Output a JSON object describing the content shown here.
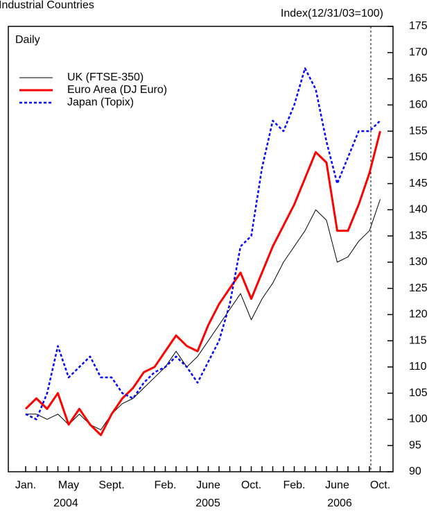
{
  "chart_data": {
    "type": "line",
    "title": "Industrial Countries",
    "y_axis_label": "Index(12/31/03=100)",
    "note": "Daily",
    "categories": [
      "Jan.",
      null,
      null,
      null,
      "May",
      null,
      null,
      null,
      "Sept.",
      null,
      null,
      null,
      null,
      "Feb.",
      null,
      null,
      null,
      "June",
      null,
      null,
      null,
      "Oct.",
      null,
      null,
      null,
      "Feb.",
      null,
      null,
      null,
      "June",
      null,
      null,
      null,
      "Oct."
    ],
    "years": [
      "2004",
      "2005",
      "2006"
    ],
    "ylim": [
      90,
      175
    ],
    "yticks": [
      90,
      95,
      100,
      105,
      110,
      115,
      120,
      125,
      130,
      135,
      140,
      145,
      150,
      155,
      160,
      165,
      170,
      175
    ],
    "series": [
      {
        "name": "UK (FTSE-350)",
        "color": "#000000",
        "dash": "none",
        "width": 1,
        "values": [
          101,
          101,
          100,
          101,
          99,
          101,
          99,
          98,
          101,
          103,
          104,
          106,
          108,
          110,
          113,
          110,
          112,
          115,
          118,
          121,
          124,
          119,
          123,
          126,
          130,
          133,
          136,
          140,
          138,
          130,
          131,
          134,
          136,
          142
        ]
      },
      {
        "name": "Euro Area (DJ Euro)",
        "color": "#ff0000",
        "dash": "none",
        "width": 3,
        "values": [
          102,
          104,
          102,
          105,
          99,
          102,
          99,
          97,
          101,
          104,
          106,
          109,
          110,
          113,
          116,
          114,
          113,
          118,
          122,
          125,
          128,
          123,
          128,
          133,
          137,
          141,
          146,
          151,
          149,
          136,
          136,
          141,
          147,
          155
        ]
      },
      {
        "name": "Japan (Topix)",
        "color": "#0000ff",
        "dash": "4 3",
        "width": 2.5,
        "values": [
          101,
          100,
          105,
          114,
          108,
          110,
          112,
          108,
          108,
          105,
          104,
          107,
          109,
          110,
          112,
          110,
          107,
          111,
          115,
          122,
          133,
          135,
          148,
          157,
          155,
          160,
          167,
          163,
          153,
          145,
          150,
          155,
          155,
          157
        ]
      }
    ]
  }
}
